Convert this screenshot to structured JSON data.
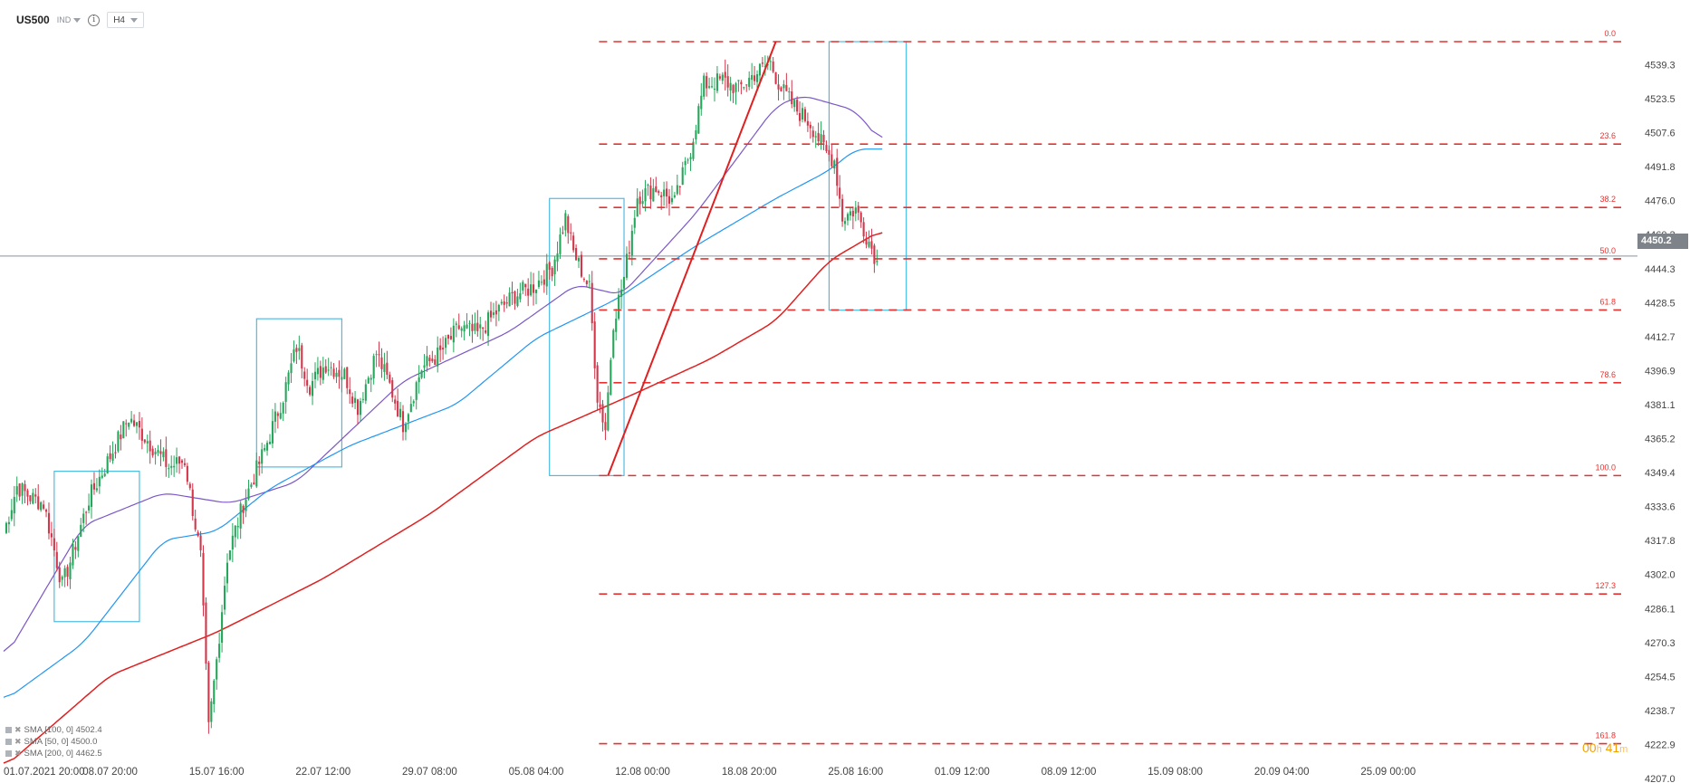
{
  "header": {
    "symbol": "US500",
    "market": "IND",
    "info_icon": "info-icon",
    "timeframe": "H4"
  },
  "current_price": "4450.2",
  "timer": {
    "hours": "00",
    "h_unit": "h",
    "minutes": "41",
    "m_unit": "m"
  },
  "legend": [
    {
      "label": "SMA [100, 0] 4502.4",
      "color": "#7b57c6"
    },
    {
      "label": "SMA [50, 0] 4500.0",
      "color": "#2196f3"
    },
    {
      "label": "SMA [200, 0] 4462.5",
      "color": "#e02020"
    }
  ],
  "colors": {
    "bull": "#26a65b",
    "bear": "#d1364a",
    "fib": "#e8312f",
    "box": "#3fb6e0",
    "sma100": "#7b57c6",
    "sma50": "#2196f3",
    "sma200": "#e02020",
    "trend": "#e02020"
  },
  "chart_data": {
    "type": "candlestick",
    "symbol": "US500",
    "timeframe": "H4",
    "ylim": [
      4207.0,
      4550.0
    ],
    "y_ticks": [
      "4539.3",
      "4523.5",
      "4507.6",
      "4491.8",
      "4476.0",
      "4460.2",
      "4444.3",
      "4428.5",
      "4412.7",
      "4396.9",
      "4381.1",
      "4365.2",
      "4349.4",
      "4333.6",
      "4317.8",
      "4302.0",
      "4286.1",
      "4270.3",
      "4254.5",
      "4238.7",
      "4222.9",
      "4207.0"
    ],
    "x_ticks": [
      {
        "label": "01.07.2021  20:00",
        "x": 0
      },
      {
        "label": "08.07  20:00",
        "x": 40
      },
      {
        "label": "15.07  16:00",
        "x": 80
      },
      {
        "label": "22.07  12:00",
        "x": 120
      },
      {
        "label": "29.07  08:00",
        "x": 160
      },
      {
        "label": "05.08  04:00",
        "x": 200
      },
      {
        "label": "12.08  00:00",
        "x": 240
      },
      {
        "label": "18.08  20:00",
        "x": 280
      },
      {
        "label": "25.08  16:00",
        "x": 320
      },
      {
        "label": "01.09  12:00",
        "x": 360
      },
      {
        "label": "08.09  12:00",
        "x": 400
      },
      {
        "label": "15.09  08:00",
        "x": 440
      },
      {
        "label": "20.09  04:00",
        "x": 480
      },
      {
        "label": "25.09  00:00",
        "x": 520
      }
    ],
    "anchors": [
      {
        "x": 0,
        "c": 4321
      },
      {
        "x": 5,
        "c": 4343
      },
      {
        "x": 10,
        "c": 4338
      },
      {
        "x": 15,
        "c": 4335
      },
      {
        "x": 22,
        "c": 4297
      },
      {
        "x": 25,
        "c": 4308
      },
      {
        "x": 32,
        "c": 4337
      },
      {
        "x": 40,
        "c": 4357
      },
      {
        "x": 47,
        "c": 4375
      },
      {
        "x": 55,
        "c": 4363
      },
      {
        "x": 62,
        "c": 4352
      },
      {
        "x": 68,
        "c": 4355
      },
      {
        "x": 74,
        "c": 4310
      },
      {
        "x": 77,
        "c": 4230
      },
      {
        "x": 80,
        "c": 4262
      },
      {
        "x": 84,
        "c": 4310
      },
      {
        "x": 90,
        "c": 4335
      },
      {
        "x": 98,
        "c": 4360
      },
      {
        "x": 105,
        "c": 4385
      },
      {
        "x": 110,
        "c": 4408
      },
      {
        "x": 115,
        "c": 4390
      },
      {
        "x": 121,
        "c": 4400
      },
      {
        "x": 128,
        "c": 4395
      },
      {
        "x": 133,
        "c": 4380
      },
      {
        "x": 140,
        "c": 4405
      },
      {
        "x": 145,
        "c": 4390
      },
      {
        "x": 150,
        "c": 4372
      },
      {
        "x": 157,
        "c": 4398
      },
      {
        "x": 164,
        "c": 4405
      },
      {
        "x": 171,
        "c": 4417
      },
      {
        "x": 178,
        "c": 4414
      },
      {
        "x": 185,
        "c": 4424
      },
      {
        "x": 192,
        "c": 4432
      },
      {
        "x": 199,
        "c": 4436
      },
      {
        "x": 206,
        "c": 4445
      },
      {
        "x": 211,
        "c": 4468
      },
      {
        "x": 214,
        "c": 4452
      },
      {
        "x": 220,
        "c": 4435
      },
      {
        "x": 223,
        "c": 4385
      },
      {
        "x": 226,
        "c": 4370
      },
      {
        "x": 229,
        "c": 4420
      },
      {
        "x": 233,
        "c": 4440
      },
      {
        "x": 238,
        "c": 4478
      },
      {
        "x": 245,
        "c": 4482
      },
      {
        "x": 252,
        "c": 4475
      },
      {
        "x": 258,
        "c": 4500
      },
      {
        "x": 263,
        "c": 4530
      },
      {
        "x": 270,
        "c": 4532
      },
      {
        "x": 276,
        "c": 4528
      },
      {
        "x": 282,
        "c": 4535
      },
      {
        "x": 288,
        "c": 4540
      },
      {
        "x": 292,
        "c": 4528
      },
      {
        "x": 298,
        "c": 4518
      },
      {
        "x": 303,
        "c": 4512
      },
      {
        "x": 309,
        "c": 4498
      },
      {
        "x": 312,
        "c": 4495
      },
      {
        "x": 315,
        "c": 4468
      },
      {
        "x": 320,
        "c": 4472
      },
      {
        "x": 324,
        "c": 4460
      },
      {
        "x": 328,
        "c": 4448
      }
    ],
    "series": [
      {
        "name": "SMA [100, 0]",
        "last": 4502.4,
        "points": [
          [
            0,
            4262
          ],
          [
            30,
            4325
          ],
          [
            60,
            4340
          ],
          [
            85,
            4335
          ],
          [
            110,
            4345
          ],
          [
            150,
            4392
          ],
          [
            190,
            4415
          ],
          [
            215,
            4437
          ],
          [
            232,
            4432
          ],
          [
            260,
            4470
          ],
          [
            290,
            4520
          ],
          [
            300,
            4525
          ],
          [
            320,
            4518
          ],
          [
            330,
            4502.4
          ]
        ]
      },
      {
        "name": "SMA [50, 0]",
        "last": 4500.0,
        "points": [
          [
            0,
            4243
          ],
          [
            30,
            4270
          ],
          [
            60,
            4318
          ],
          [
            80,
            4322
          ],
          [
            100,
            4342
          ],
          [
            130,
            4362
          ],
          [
            170,
            4381
          ],
          [
            200,
            4412
          ],
          [
            230,
            4430
          ],
          [
            260,
            4455
          ],
          [
            290,
            4477
          ],
          [
            310,
            4490
          ],
          [
            320,
            4500
          ],
          [
            330,
            4500.0
          ]
        ]
      },
      {
        "name": "SMA [200, 0]",
        "last": 4462.5,
        "points": [
          [
            0,
            4212
          ],
          [
            40,
            4255
          ],
          [
            80,
            4275
          ],
          [
            120,
            4300
          ],
          [
            160,
            4330
          ],
          [
            200,
            4366
          ],
          [
            235,
            4385
          ],
          [
            265,
            4402
          ],
          [
            290,
            4420
          ],
          [
            310,
            4448
          ],
          [
            330,
            4462.5
          ]
        ]
      }
    ],
    "fibonacci": [
      {
        "level": "0.0",
        "price": 4550.0
      },
      {
        "level": "23.6",
        "price": 4502.3
      },
      {
        "level": "38.2",
        "price": 4472.8
      },
      {
        "level": "50.0",
        "price": 4448.9
      },
      {
        "level": "61.8",
        "price": 4425.1
      },
      {
        "level": "78.6",
        "price": 4391.2
      },
      {
        "level": "100.0",
        "price": 4348.0
      },
      {
        "level": "127.3",
        "price": 4292.9
      },
      {
        "level": "161.8",
        "price": 4223.2
      }
    ],
    "trendline": [
      [
        227,
        4348.0
      ],
      [
        290,
        4550.0
      ]
    ],
    "boxes": [
      {
        "x1": 19,
        "x2": 51,
        "y1": 4280.0,
        "y2": 4350.0
      },
      {
        "x1": 95,
        "x2": 127,
        "y1": 4352.0,
        "y2": 4421.0
      },
      {
        "x1": 205,
        "x2": 233,
        "y1": 4348.0,
        "y2": 4477.0
      },
      {
        "x1": 310,
        "x2": 339,
        "y1": 4425.0,
        "y2": 4550.0
      }
    ],
    "current_price": 4450.2,
    "grid": false,
    "legend_position": "bottom-left"
  }
}
